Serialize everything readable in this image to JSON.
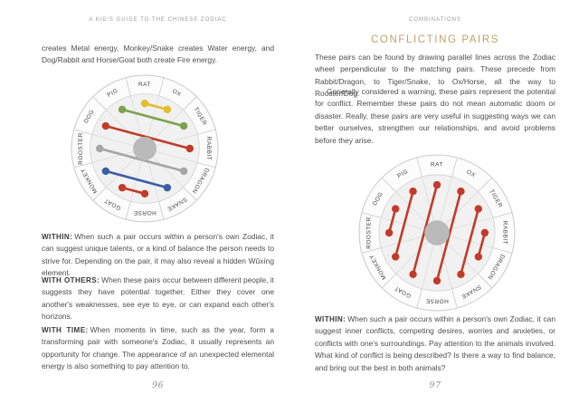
{
  "left_page": {
    "header": "A KID'S GUIDE TO THE CHINESE ZODIAC",
    "intro": "creates Metal energy, Monkey/Snake creates Water energy, and Dog/Rabbit and Horse/Goat both create Fire energy.",
    "paragraphs": [
      {
        "lead": "WITHIN:",
        "text": "When such a pair occurs within a person's own Zodiac, it can suggest unique talents, or a kind of balance the person needs to strive for. Depending on the pair, it may also reveal a hidden Wǔxíng element."
      },
      {
        "lead": "WITH OTHERS:",
        "text": "When these pairs occur between different people, it suggests they have potential together. Either they cover one another's weaknesses, see eye to eye, or can expand each other's horizons."
      },
      {
        "lead": "WITH TIME:",
        "text": "When moments in time, such as the year, form a transforming pair with someone's Zodiac, it usually represents an opportunity for change. The appearance of an unexpected elemental energy is also something to pay attention to."
      }
    ],
    "page_number": "96"
  },
  "right_page": {
    "header": "COMBINATIONS",
    "title": "CONFLICTING PAIRS",
    "intro": "These pairs can be found by drawing parallel lines across the Zodiac wheel perpendicular to the matching pairs. These precede from Rabbit/Dragon, to Tiger/Snake, to Ox/Horse, all the way to Rooster/Dog.",
    "body": "Generally considered a warning, these pairs represent the potential for conflict. Remember these pairs do not mean automatic doom or disaster. Really, these pairs are very useful in suggesting ways we can better ourselves, strengthen our relationships, and avoid problems before they arise.",
    "within": {
      "lead": "WITHIN:",
      "text": "When such a pair occurs within a person's own Zodiac, it can suggest inner conflicts, competing desires, worries and anxieties, or conflicts with one's surroundings. Pay attention to the animals involved. What kind of conflict is being described? Is there a way to find balance, and bring out the best in both animals?"
    },
    "page_number": "97"
  },
  "wheels": [
    {
      "id": "transforming",
      "name": "transforming-pairs-wheel",
      "sectors": [
        "RAT",
        "OX",
        "TIGER",
        "RABBIT",
        "DRAGON",
        "SNAKE",
        "HORSE",
        "GOAT",
        "MONKEY",
        "ROOSTER",
        "DOG",
        "PIG"
      ],
      "pairs": [
        {
          "from": "RAT",
          "to": "OX",
          "color": "#e2be2b"
        },
        {
          "from": "PIG",
          "to": "TIGER",
          "color": "#7da24d"
        },
        {
          "from": "DOG",
          "to": "RABBIT",
          "color": "#c33b28"
        },
        {
          "from": "ROOSTER",
          "to": "DRAGON",
          "color": "#a5a5a5"
        },
        {
          "from": "MONKEY",
          "to": "SNAKE",
          "color": "#3b5ea7"
        },
        {
          "from": "GOAT",
          "to": "HORSE",
          "color": "#c33b28"
        }
      ]
    },
    {
      "id": "conflicting",
      "name": "conflicting-pairs-wheel",
      "sectors": [
        "RAT",
        "OX",
        "TIGER",
        "RABBIT",
        "DRAGON",
        "SNAKE",
        "HORSE",
        "GOAT",
        "MONKEY",
        "ROOSTER",
        "DOG",
        "PIG"
      ],
      "pairs": [
        {
          "from": "DOG",
          "to": "ROOSTER",
          "color": "#c33b28"
        },
        {
          "from": "PIG",
          "to": "MONKEY",
          "color": "#c33b28"
        },
        {
          "from": "RAT",
          "to": "GOAT",
          "color": "#c33b28"
        },
        {
          "from": "OX",
          "to": "HORSE",
          "color": "#c33b28"
        },
        {
          "from": "TIGER",
          "to": "SNAKE",
          "color": "#c33b28"
        },
        {
          "from": "RABBIT",
          "to": "DRAGON",
          "color": "#c33b28"
        }
      ]
    }
  ],
  "colors": {
    "title_gold": "#c0a169",
    "body_text": "#4d4d4d",
    "running_head": "#9b9b9b",
    "wheel_hub": "#bababa",
    "wheel_ring_fill": "#fcfcfc",
    "wheel_inner_fill": "#f1f1f1",
    "wheel_stroke": "#c9c9c9",
    "earth_yellow": "#e2be2b",
    "wood_green": "#7da24d",
    "fire_red": "#c33b28",
    "metal_gray": "#a5a5a5",
    "water_blue": "#3b5ea7"
  }
}
